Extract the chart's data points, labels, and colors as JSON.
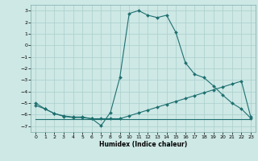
{
  "xlabel": "Humidex (Indice chaleur)",
  "xlim": [
    -0.5,
    23.5
  ],
  "ylim": [
    -7.5,
    3.5
  ],
  "xticks": [
    0,
    1,
    2,
    3,
    4,
    5,
    6,
    7,
    8,
    9,
    10,
    11,
    12,
    13,
    14,
    15,
    16,
    17,
    18,
    19,
    20,
    21,
    22,
    23
  ],
  "yticks": [
    -7,
    -6,
    -5,
    -4,
    -3,
    -2,
    -1,
    0,
    1,
    2,
    3
  ],
  "background_color": "#cde8e5",
  "grid_color": "#aacfcc",
  "line_color": "#1e7070",
  "line1_x": [
    0,
    1,
    2,
    3,
    4,
    5,
    6,
    7,
    8,
    9,
    10,
    11,
    12,
    13,
    14,
    15,
    16,
    17,
    18,
    19,
    20,
    21,
    22,
    23
  ],
  "line1_y": [
    -5.0,
    -5.5,
    -5.9,
    -6.1,
    -6.2,
    -6.2,
    -6.35,
    -6.95,
    -5.8,
    -2.8,
    2.75,
    3.0,
    2.6,
    2.4,
    2.6,
    1.1,
    -1.5,
    -2.5,
    -2.8,
    -3.5,
    -4.3,
    -5.0,
    -5.5,
    -6.3
  ],
  "line2_x": [
    0,
    1,
    2,
    3,
    4,
    5,
    6,
    7,
    8,
    9,
    10,
    11,
    12,
    13,
    14,
    15,
    16,
    17,
    18,
    19,
    20,
    21,
    22,
    23
  ],
  "line2_y": [
    -5.2,
    -5.5,
    -5.9,
    -6.15,
    -6.25,
    -6.25,
    -6.35,
    -6.35,
    -6.35,
    -6.35,
    -6.1,
    -5.85,
    -5.6,
    -5.35,
    -5.1,
    -4.85,
    -4.6,
    -4.35,
    -4.1,
    -3.85,
    -3.6,
    -3.35,
    -3.1,
    -6.2
  ],
  "line3_x": [
    0,
    23
  ],
  "line3_y": [
    -6.4,
    -6.4
  ]
}
